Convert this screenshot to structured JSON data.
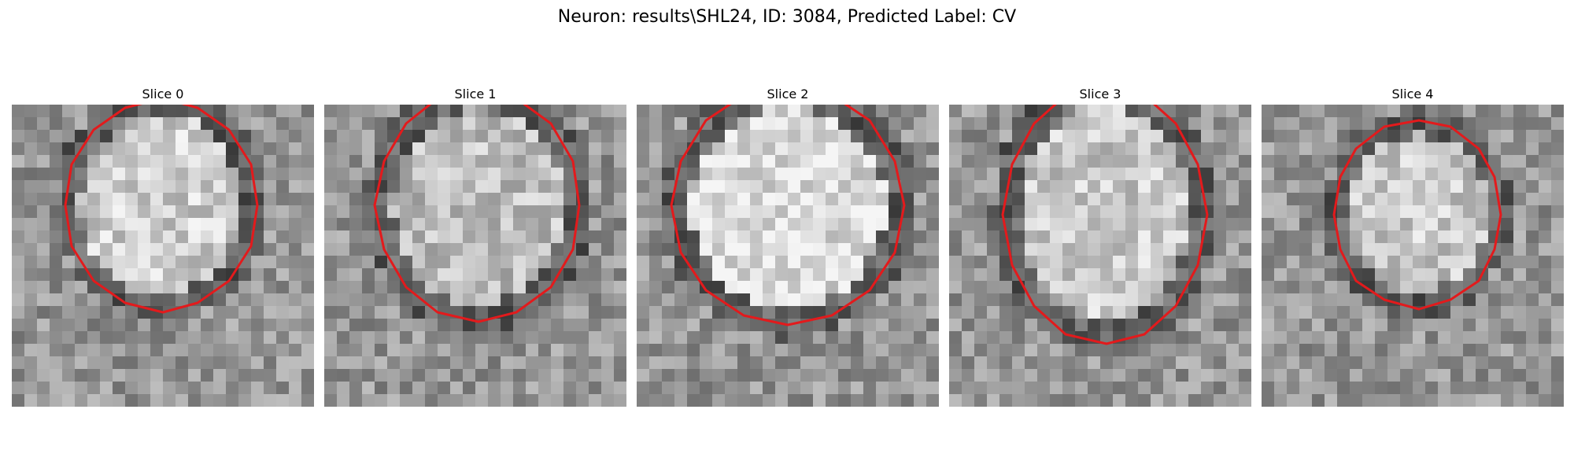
{
  "figure": {
    "title": "Neuron: results\\SHL24, ID: 3084, Predicted Label: CV"
  },
  "panels": [
    {
      "title": "Slice 0"
    },
    {
      "title": "Slice 1"
    },
    {
      "title": "Slice 2"
    },
    {
      "title": "Slice 3"
    },
    {
      "title": "Slice 4"
    }
  ],
  "colors": {
    "contour": "#e31a1c",
    "background": "#ffffff"
  }
}
